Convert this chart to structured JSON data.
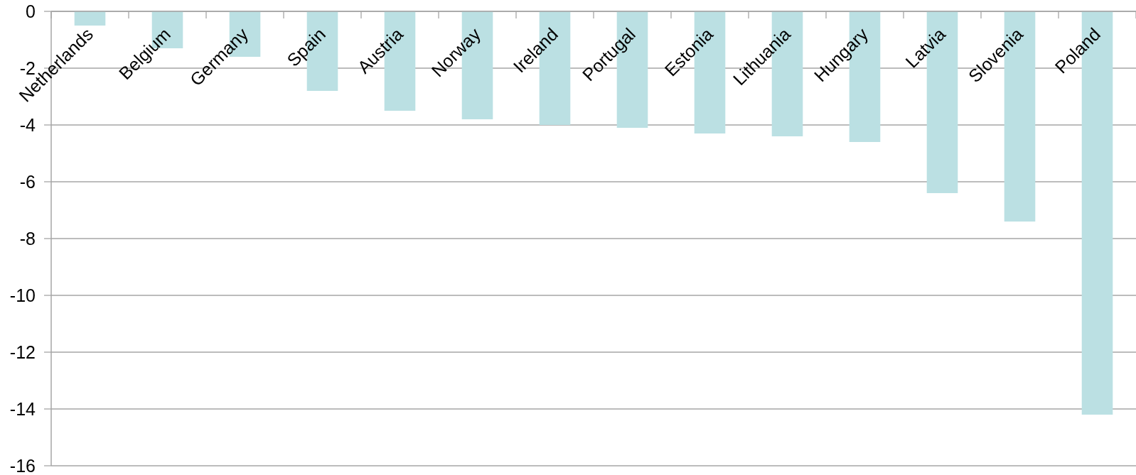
{
  "chart_data": {
    "type": "bar",
    "categories": [
      "Netherlands",
      "Belgium",
      "Germany",
      "Spain",
      "Austria",
      "Norway",
      "Ireland",
      "Portugal",
      "Estonia",
      "Lithuania",
      "Hungary",
      "Latvia",
      "Slovenia",
      "Poland"
    ],
    "values": [
      -0.5,
      -1.3,
      -1.6,
      -2.8,
      -3.5,
      -3.8,
      -4.0,
      -4.1,
      -4.3,
      -4.4,
      -4.6,
      -6.4,
      -7.4,
      -14.2
    ],
    "color": "#bbe0e3",
    "ylim": [
      -16,
      0
    ],
    "yticks": [
      0,
      -2,
      -4,
      -6,
      -8,
      -10,
      -12,
      -14,
      -16
    ],
    "grid": "y"
  }
}
